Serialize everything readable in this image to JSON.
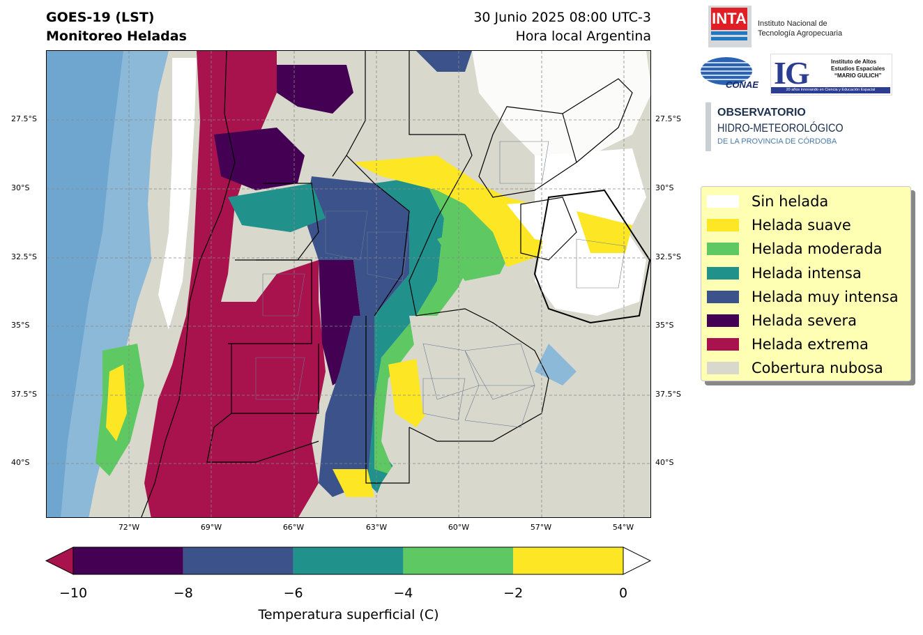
{
  "header": {
    "title_line1": "GOES-19 (LST)",
    "title_line2": "Monitoreo Heladas",
    "date_line1": "30 Junio 2025 08:00 UTC-3",
    "date_line2": "Hora local Argentina"
  },
  "map": {
    "lat_ticks": [
      "27.5°S",
      "30°S",
      "32.5°S",
      "35°S",
      "37.5°S",
      "40°S"
    ],
    "lon_ticks": [
      "72°W",
      "69°W",
      "66°W",
      "63°W",
      "60°W",
      "57°W",
      "54°W"
    ],
    "extent": {
      "lon_min": -75,
      "lon_max": -53,
      "lat_min": -42,
      "lat_max": -25
    }
  },
  "colorbar": {
    "label": "Temperatura superficial (C)",
    "ticks": [
      "−10",
      "−8",
      "−6",
      "−4",
      "−2",
      "0"
    ],
    "bins": [
      {
        "from": -10,
        "to": -8,
        "color": "#440154"
      },
      {
        "from": -8,
        "to": -6,
        "color": "#3b528b"
      },
      {
        "from": -6,
        "to": -4,
        "color": "#21918c"
      },
      {
        "from": -4,
        "to": -2,
        "color": "#5ec962"
      },
      {
        "from": -2,
        "to": 0,
        "color": "#fde725"
      }
    ],
    "under_color": "#a8124d",
    "over_color": "#ffffff"
  },
  "legend": {
    "items": [
      {
        "label": "Sin helada",
        "color": "#ffffff"
      },
      {
        "label": "Helada suave",
        "color": "#fde725"
      },
      {
        "label": "Helada moderada",
        "color": "#5ec962"
      },
      {
        "label": "Helada intensa",
        "color": "#21918c"
      },
      {
        "label": "Helada muy intensa",
        "color": "#3b528b"
      },
      {
        "label": "Helada severa",
        "color": "#440154"
      },
      {
        "label": "Helada extrema",
        "color": "#a8124d"
      },
      {
        "label": "Cobertura nubosa",
        "color": "#d8d8cc"
      }
    ]
  },
  "logos": {
    "inta_mark": "INTA",
    "inta_name_line1": "Instituto Nacional de",
    "inta_name_line2": "Tecnología Agropecuaria",
    "conae": "CONAE",
    "ig_mark": "IG",
    "ig_line1": "Instituto de Altos",
    "ig_line2": "Estudios Espaciales",
    "ig_line3": "“MARIO GULICH”",
    "ig_bar": "20 años innovando en Ciencia y Educación Espacial",
    "obs_line1": "OBSERVATORIO",
    "obs_line2": "HIDRO-METEOROLÓGICO",
    "obs_line3": "DE LA PROVINCIA DE CÓRDOBA"
  }
}
